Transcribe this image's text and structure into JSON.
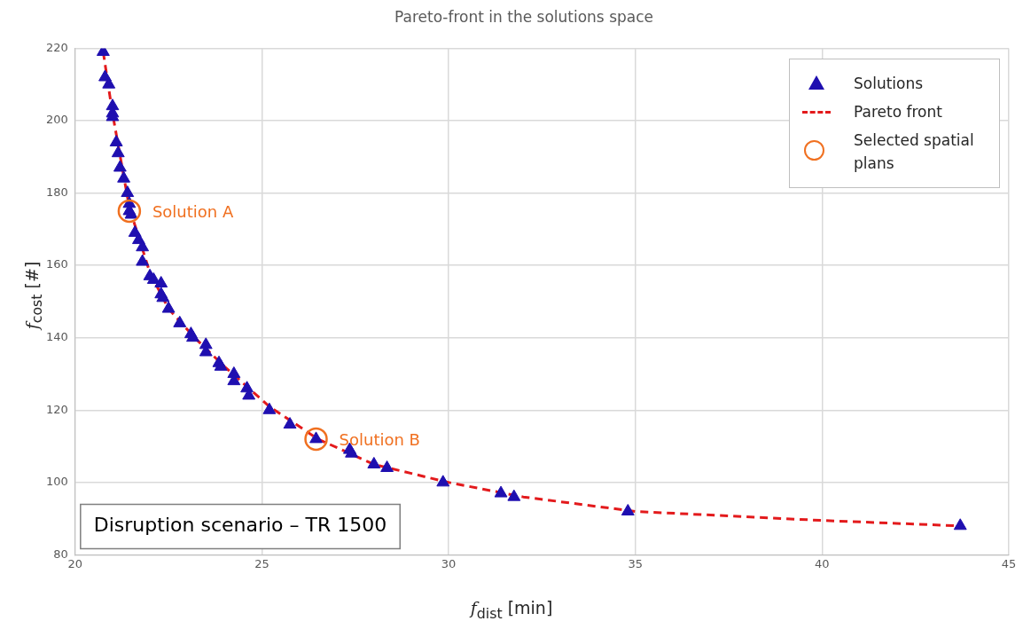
{
  "chart_data": {
    "type": "scatter",
    "title": "Pareto-front in the solutions space",
    "xlabel": "f$_{dist}$ [min]",
    "ylabel": "f$_{cost}$ [#]",
    "xlim": [
      20,
      45
    ],
    "xticks": [
      20,
      25,
      30,
      35,
      40,
      45
    ],
    "ylim": [
      80,
      220
    ],
    "yticks": [
      80,
      100,
      120,
      140,
      160,
      180,
      200,
      220
    ],
    "grid": true,
    "legend": "top right",
    "series": [
      {
        "name": "Solutions",
        "marker": "triangle",
        "color": "#1f0fb0",
        "x": [
          20.75,
          20.8,
          20.9,
          21.0,
          21.0,
          21.0,
          21.1,
          21.15,
          21.2,
          21.3,
          21.4,
          21.45,
          21.45,
          21.5,
          21.6,
          21.7,
          21.8,
          21.8,
          22.0,
          22.1,
          22.3,
          22.3,
          22.35,
          22.5,
          22.8,
          23.1,
          23.15,
          23.5,
          23.5,
          23.85,
          23.9,
          24.25,
          24.25,
          24.6,
          24.65,
          25.2,
          25.75,
          26.45,
          27.35,
          27.4,
          28.0,
          28.35,
          29.85,
          31.4,
          31.75,
          34.8,
          43.7
        ],
        "values": [
          219,
          212,
          210,
          204,
          202,
          201,
          194,
          191,
          187,
          184,
          180,
          177,
          175,
          174,
          169,
          167,
          165,
          161,
          157,
          156,
          155,
          152,
          151,
          148,
          144,
          141,
          140,
          138,
          136,
          133,
          132,
          130,
          128,
          126,
          124,
          120,
          116,
          112,
          109,
          108,
          105,
          104,
          100,
          97,
          96,
          92,
          88
        ]
      },
      {
        "name": "Pareto front",
        "type": "line",
        "marker": "none",
        "line_style": "dashed",
        "color": "#e31a1c",
        "x": [
          20.75,
          21.0,
          21.45,
          22.0,
          22.5,
          23.2,
          24.0,
          25.2,
          26.5,
          28.0,
          30.0,
          32.0,
          35.0,
          40.0,
          43.7
        ],
        "values": [
          219,
          202,
          176,
          158,
          148,
          140,
          132,
          121,
          112,
          105,
          100,
          96,
          92,
          89.5,
          88
        ]
      },
      {
        "name": "Selected spatial plans",
        "marker": "circle",
        "color": "#f07020",
        "x": [
          21.45,
          26.45
        ],
        "values": [
          175,
          112
        ]
      }
    ],
    "annotations": [
      {
        "text": "Solution A",
        "x": 21.45,
        "y": 175
      },
      {
        "text": "Solution B",
        "x": 26.45,
        "y": 112
      },
      "Disruption scenario – TR 1500"
    ]
  }
}
